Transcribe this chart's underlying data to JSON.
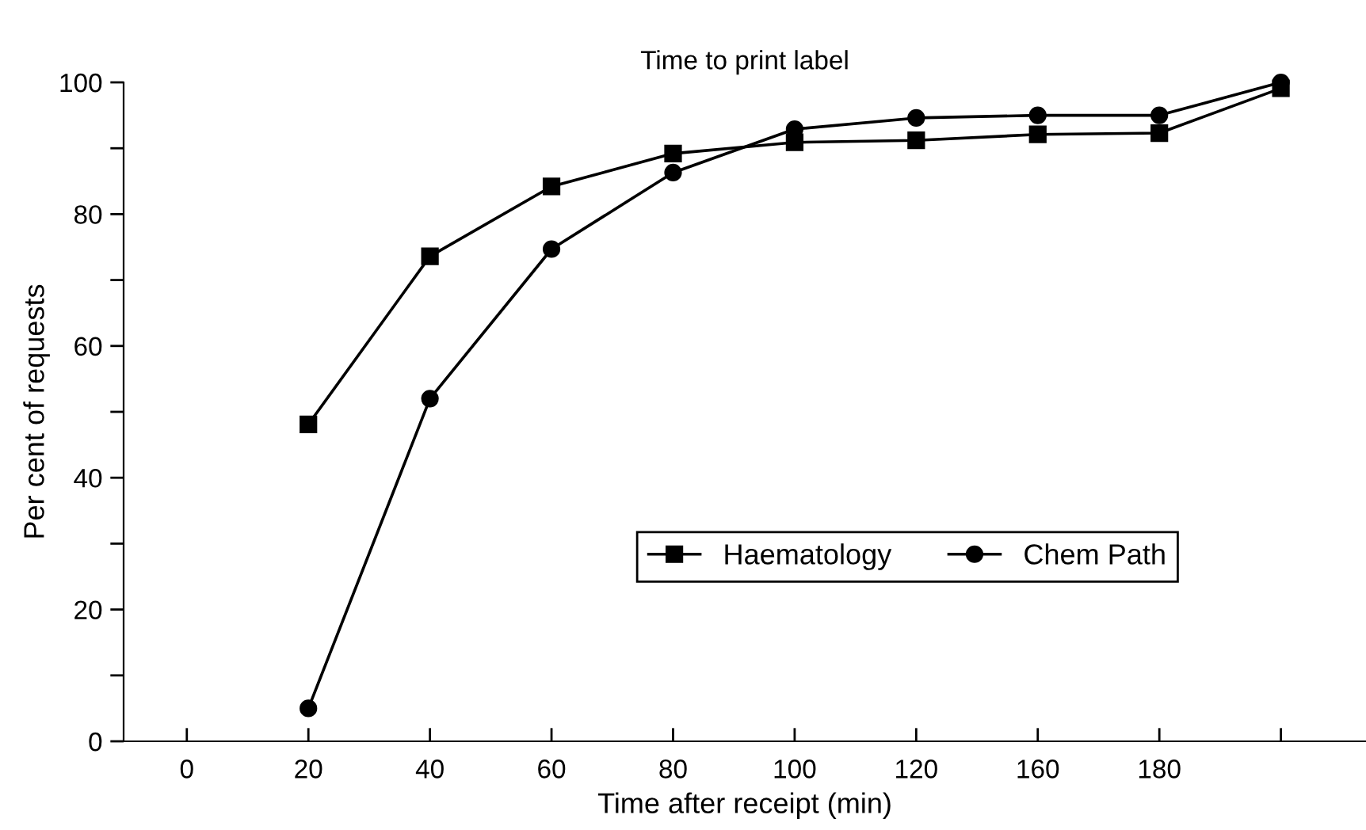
{
  "chart_data": {
    "type": "line",
    "title": "Time to print label",
    "xlabel": "Time after receipt (min)",
    "ylabel": "Per cent of requests",
    "categories": [
      "0",
      "20",
      "40",
      "60",
      "80",
      "100",
      "120",
      "160",
      "180",
      null
    ],
    "series": [
      {
        "name": "Haematology",
        "color": "#000000",
        "marker": "square",
        "values": [
          null,
          48.1,
          73.6,
          84.2,
          89.2,
          90.9,
          91.2,
          92.1,
          92.3,
          99.1
        ]
      },
      {
        "name": "Chem Path",
        "color": "#000000",
        "marker": "circle",
        "values": [
          null,
          5.0,
          52.0,
          74.7,
          86.3,
          92.9,
          94.6,
          95.0,
          95.0,
          100
        ]
      }
    ],
    "ylim": [
      0,
      100
    ],
    "yticks": [
      0,
      {
        "value": 10,
        "label": null
      },
      20,
      {
        "value": 30,
        "label": null
      },
      40,
      {
        "value": 50,
        "label": null
      },
      60,
      {
        "value": 70,
        "label": null
      },
      80,
      {
        "value": 90,
        "label": null
      },
      100
    ],
    "grid": false,
    "legend": "right",
    "line_style": "solid"
  }
}
